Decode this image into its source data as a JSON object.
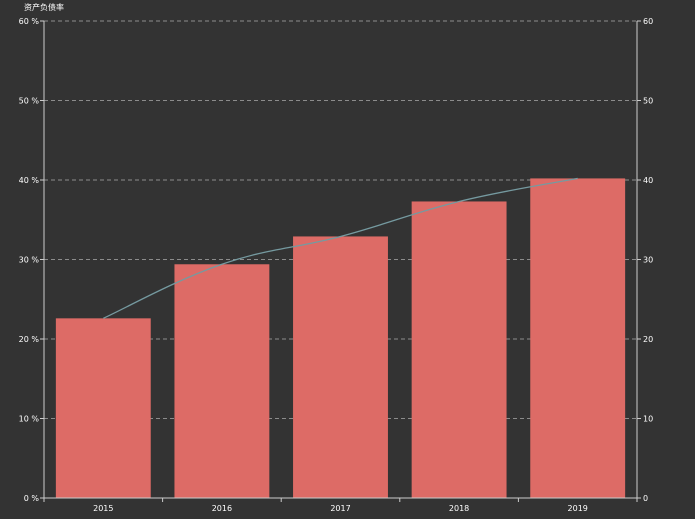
{
  "chart_data": {
    "type": "bar",
    "title": "资产负债率",
    "categories": [
      "2015",
      "2016",
      "2017",
      "2018",
      "2019"
    ],
    "series": [
      {
        "type": "bar",
        "values": [
          22.6,
          29.4,
          32.9,
          37.3,
          40.2
        ]
      },
      {
        "type": "line",
        "values": [
          22.6,
          29.4,
          32.9,
          37.3,
          40.2
        ]
      }
    ],
    "y_left": {
      "min": 0,
      "max": 60,
      "ticks": [
        0,
        10,
        20,
        30,
        40,
        50,
        60
      ],
      "suffix": " %"
    },
    "y_right": {
      "min": 0,
      "max": 60,
      "ticks": [
        0,
        10,
        20,
        30,
        40,
        50,
        60
      ]
    },
    "grid": true,
    "colors": {
      "background": "#333333",
      "bar": "#dd6b66",
      "line": "#759aa0",
      "axis": "#cccccc",
      "grid": "#aaaaaa",
      "text": "#ffffff"
    }
  }
}
